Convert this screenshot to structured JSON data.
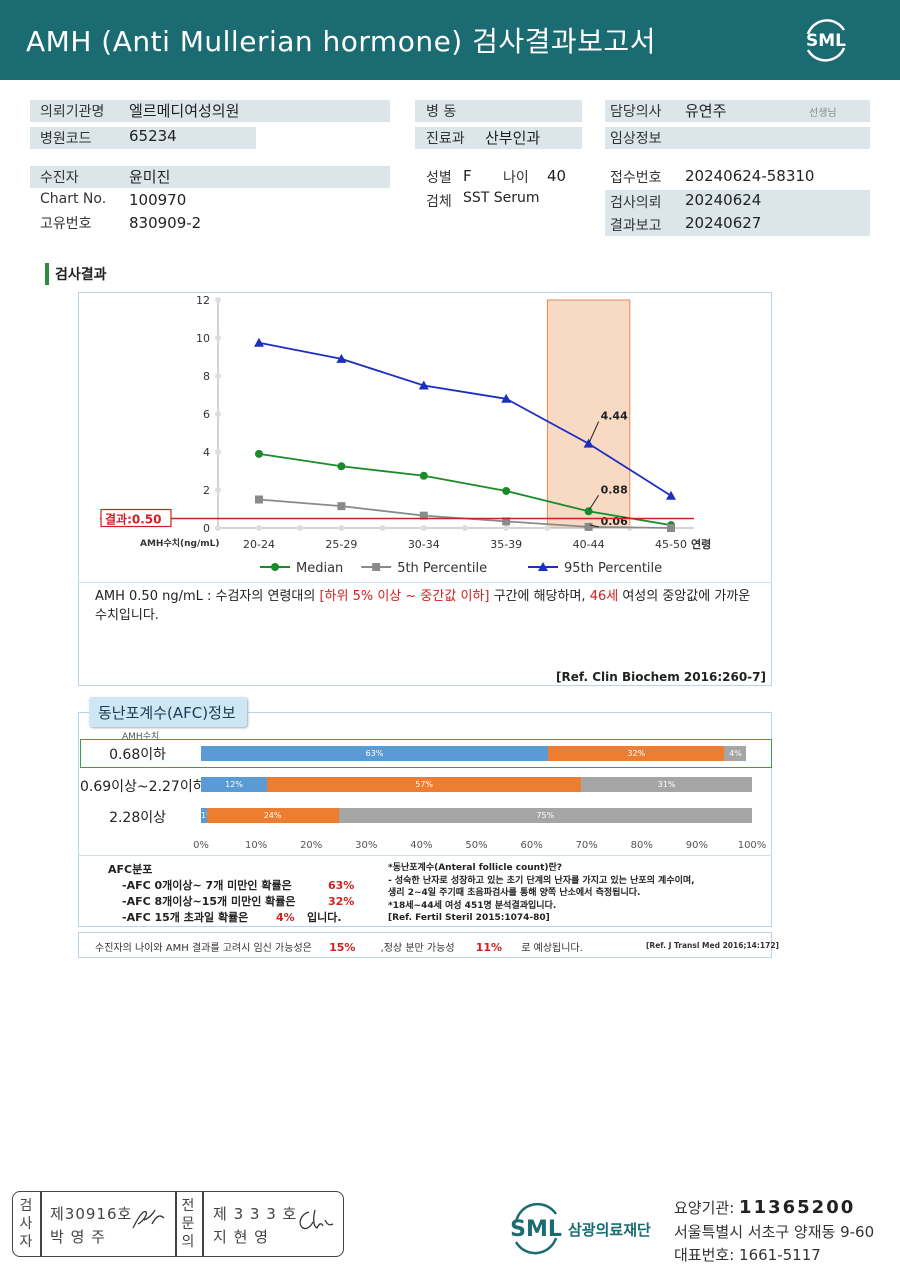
{
  "header": {
    "title": "AMH (Anti Mullerian hormone) 검사결과보고서",
    "logo_text": "SML"
  },
  "info": {
    "institution_label": "의뢰기관명",
    "institution": "엘르메디여성의원",
    "hospital_code_label": "병원코드",
    "hospital_code": "65234",
    "ward_label": "병 동",
    "ward": "",
    "department_label": "진료과",
    "department": "산부인과",
    "doctor_label": "담당의사",
    "doctor": "유연주",
    "doctor_suffix": "선생님",
    "clinical_label": "임상정보",
    "clinical": "",
    "patient_label": "수진자",
    "patient": "윤미진",
    "chart_label": "Chart No.",
    "chart_no": "100970",
    "id_label": "고유번호",
    "id_no": "830909-2",
    "sex_label": "성별",
    "sex": "F",
    "age_label": "나이",
    "age": "40",
    "specimen_label": "검체",
    "specimen": "SST Serum",
    "receipt_label": "접수번호",
    "receipt_no": "20240624-58310",
    "request_label": "검사의뢰",
    "request_date": "20240624",
    "report_label": "결과보고",
    "report_date": "20240627"
  },
  "section_title": "검사결과",
  "chart_data": {
    "type": "line",
    "categories": [
      "20-24",
      "25-29",
      "30-34",
      "35-39",
      "40-44",
      "45-50"
    ],
    "x_suffix_label": "연령",
    "ylabel": "AMH수치(ng/mL)",
    "ylim": [
      0,
      12
    ],
    "yticks": [
      0,
      2,
      4,
      6,
      8,
      10,
      12
    ],
    "series": [
      {
        "name": "Median",
        "values": [
          3.9,
          3.25,
          2.75,
          1.95,
          0.88,
          0.15
        ],
        "color": "#1a8a2a",
        "marker": "circle"
      },
      {
        "name": "5th Percentile",
        "values": [
          1.5,
          1.15,
          0.65,
          0.35,
          0.06,
          0.0
        ],
        "color": "#8a8a8a",
        "marker": "square"
      },
      {
        "name": "95th Percentile",
        "values": [
          9.75,
          8.9,
          7.5,
          6.8,
          4.44,
          1.7
        ],
        "color": "#1c2fc0",
        "marker": "triangle"
      }
    ],
    "highlight_category": "40-44",
    "annotations": [
      "4.44",
      "0.88",
      "0.06"
    ],
    "result_label": "결과:0.50",
    "result_value": 0.5,
    "grid": false,
    "legend_position": "bottom"
  },
  "comment": {
    "part1": "AMH  0.50 ng/mL : 수검자의 연령대의 ",
    "highlight1": "[하위 5% 이상 ~ 중간값 이하]",
    "part2": " 구간에 해당하며, ",
    "highlight2": "46세",
    "part3": " 여성의 중앙값에 가까운 수치입니다.",
    "ref": "[Ref. Clin Biochem 2016:260-7]"
  },
  "afc": {
    "tab_title": "동난포계수(AFC)정보",
    "amh_label": "AMH수치",
    "rows": [
      {
        "label": "0.68이하",
        "segments": [
          {
            "color": "blue",
            "pct": 63,
            "text": "63%"
          },
          {
            "color": "orange",
            "pct": 32,
            "text": "32%"
          },
          {
            "color": "gray",
            "pct": 4,
            "text": "4%"
          }
        ]
      },
      {
        "label": "0.69이상~2.27이하",
        "segments": [
          {
            "color": "blue",
            "pct": 12,
            "text": "12%"
          },
          {
            "color": "orange",
            "pct": 57,
            "text": "57%"
          },
          {
            "color": "gray",
            "pct": 31,
            "text": "31%"
          }
        ]
      },
      {
        "label": "2.28이상",
        "segments": [
          {
            "color": "blue",
            "pct": 1,
            "text": "1%"
          },
          {
            "color": "orange",
            "pct": 24,
            "text": "24%"
          },
          {
            "color": "gray",
            "pct": 75,
            "text": "75%"
          }
        ]
      }
    ],
    "axis": [
      "0%",
      "10%",
      "20%",
      "30%",
      "40%",
      "50%",
      "60%",
      "70%",
      "80%",
      "90%",
      "100%"
    ],
    "dist_title": "AFC분포",
    "dist": [
      {
        "text": "-AFC  0개이상~ 7개 미만인 확률은",
        "value": "63%"
      },
      {
        "text": "-AFC  8개이상~15개 미만인 확률은",
        "value": "32%"
      },
      {
        "text": "-AFC  15개 초과일 확률은",
        "value": "4%",
        "suffix": "입니다."
      }
    ],
    "notes": [
      "*동난포계수(Anteral  follicle  count)란?",
      "-  성숙한 난자로 성장하고 있는 초기 단계의 난자를 가지고 있는 난포의 계수이며,",
      "   생리 2~4일 주기때 초음파검사를 통해 양쪽 난소에서 측정됩니다.",
      "*18세~44세 여성 451명 분석결과입니다.",
      "[Ref. Fertil Steril 2015:1074-80]"
    ]
  },
  "bottom": {
    "part1": "수진자의  나이와 AMH 결과를 고려시 임신 가능성은",
    "value1": "15%",
    "part2": ",정상 분만 가능성",
    "value2": "11%",
    "part3": "로 예상됩니다.",
    "ref": "[Ref. J Transl Med 2016;14:172]"
  },
  "signature": {
    "label1": [
      "검",
      "사",
      "자"
    ],
    "license1": "제30916호",
    "name1": "박  영  주",
    "label2": [
      "전",
      "문",
      "의"
    ],
    "license2": "제 3 3 3 호",
    "name2": "지  현  영"
  },
  "footer": {
    "org": "삼광의료재단",
    "code_label": "요양기관:",
    "code": "11365200",
    "address": "서울특별시 서초구 양재동 9-60",
    "phone_label": "대표번호:",
    "phone": "1661-5117"
  },
  "colors": {
    "header": "#1b6b72",
    "accent_red": "#d21f1f",
    "highlight": "#f8d9c4"
  }
}
